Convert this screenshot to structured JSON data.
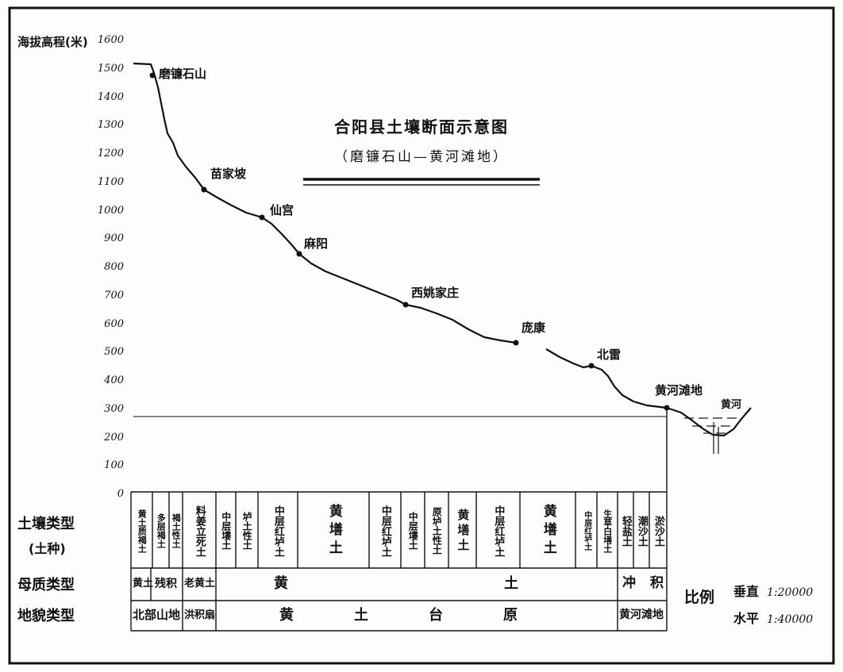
{
  "title": "合阳县土壤断面示意图",
  "subtitle": "（磨镰石山—黄河滩地）",
  "y_axis": {
    "label": "海拔高程(米)",
    "ticks": [
      "1600",
      "1500",
      "1400",
      "1300",
      "1200",
      "1100",
      "1000",
      "900",
      "800",
      "700",
      "600",
      "500",
      "400",
      "300",
      "200",
      "100",
      "0"
    ]
  },
  "places": [
    "磨镰石山",
    "苗家坡",
    "仙宫",
    "麻阳",
    "西姚家庄",
    "庞康",
    "北雷",
    "黄河滩地",
    "黄河"
  ],
  "table": {
    "row_labels": {
      "soil": "土壤类型",
      "soil_sub": "(土种)",
      "parent": "母质类型",
      "landform": "地貌类型"
    },
    "soil_types": [
      "黄土质褐土",
      "多层褐土",
      "褐土性土",
      "料姜立死土",
      "中层塿土",
      "垆土性土",
      "中层红垆土",
      "黄墡土",
      "中层红垆土",
      "中层塿土",
      "原垆土性土",
      "黄墡土",
      "中层红垆土",
      "黄墡土",
      "中层红垆土",
      "生草白墡土",
      "轻盐土",
      "潮沙土",
      "淤沙土"
    ],
    "parent_material": [
      "黄土",
      "残积",
      "老黄土",
      "黄土",
      "冲积"
    ],
    "landform": [
      "北部山地",
      "洪积扇",
      "黄土台原",
      "黄河滩地"
    ]
  },
  "scale": {
    "label": "比例",
    "vertical_label": "垂直",
    "vertical_value": "1:20000",
    "horizontal_label": "水平",
    "horizontal_value": "1:40000"
  }
}
